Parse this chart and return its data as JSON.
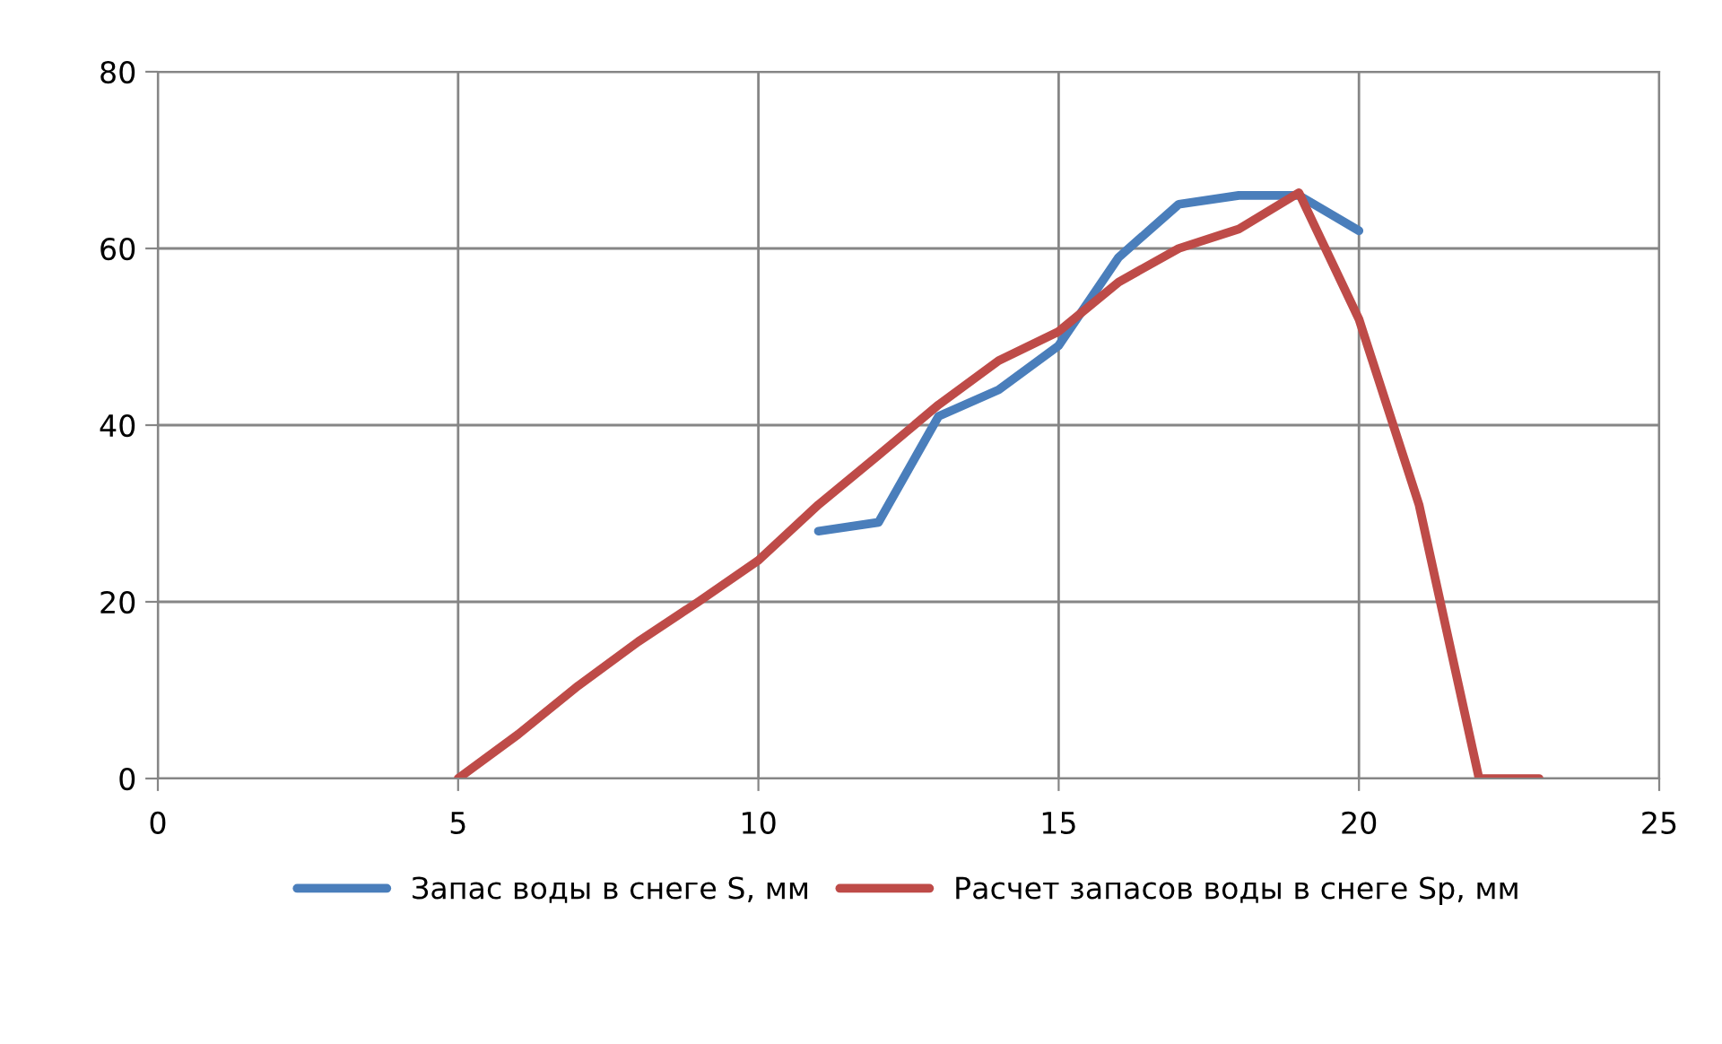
{
  "chart_data": {
    "type": "line",
    "xlim": [
      0,
      25
    ],
    "xticks": [
      0,
      5,
      10,
      15,
      20,
      25
    ],
    "ylim": [
      0,
      80
    ],
    "yticks": [
      0,
      20,
      40,
      60,
      80
    ],
    "grid": true,
    "legend": "bottom",
    "marker": "none",
    "line_style": "solid",
    "series": [
      {
        "name": "Запас воды в снеге S, мм",
        "color": "#4a7ebb",
        "x": [
          11,
          12,
          13,
          14,
          15,
          16,
          17,
          18,
          19,
          20
        ],
        "values": [
          28,
          29,
          41,
          44,
          49,
          59,
          65,
          66,
          66,
          62
        ]
      },
      {
        "name": "Расчет запасов воды в снеге Sp, мм",
        "color": "#be4b48",
        "x": [
          5,
          6,
          7,
          8,
          9,
          10,
          11,
          12,
          13,
          14,
          15,
          16,
          17,
          18,
          19,
          20,
          21,
          22,
          23
        ],
        "values": [
          0,
          5,
          10.5,
          15.5,
          20,
          24.7,
          31,
          36.6,
          42.3,
          47.3,
          50.6,
          56.2,
          60,
          62.2,
          66.3,
          52,
          31,
          0,
          0
        ]
      }
    ]
  }
}
